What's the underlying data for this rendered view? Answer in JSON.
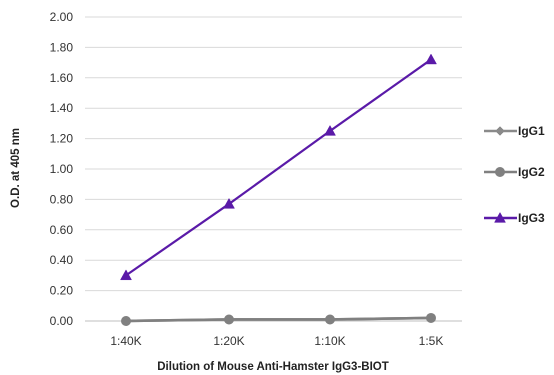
{
  "chart_data": {
    "type": "line",
    "title": "",
    "xlabel": "Dilution of Mouse Anti-Hamster IgG3-BIOT",
    "ylabel": "O.D. at 405 nm",
    "categories": [
      "1:40K",
      "1:20K",
      "1:10K",
      "1:5K"
    ],
    "ylim": [
      0,
      2.0
    ],
    "yticks": [
      "0.00",
      "0.20",
      "0.40",
      "0.60",
      "0.80",
      "1.00",
      "1.20",
      "1.40",
      "1.60",
      "1.80",
      "2.00"
    ],
    "grid": true,
    "legend_position": "right",
    "series": [
      {
        "name": "IgG1",
        "values": [
          0.0,
          0.01,
          0.01,
          0.02
        ],
        "color": "#8a8a8a",
        "marker": "diamond"
      },
      {
        "name": "IgG2",
        "values": [
          0.0,
          0.01,
          0.01,
          0.02
        ],
        "color": "#808080",
        "marker": "circle"
      },
      {
        "name": "IgG3",
        "values": [
          0.3,
          0.77,
          1.25,
          1.72
        ],
        "color": "#5a1aa8",
        "marker": "triangle"
      }
    ]
  }
}
